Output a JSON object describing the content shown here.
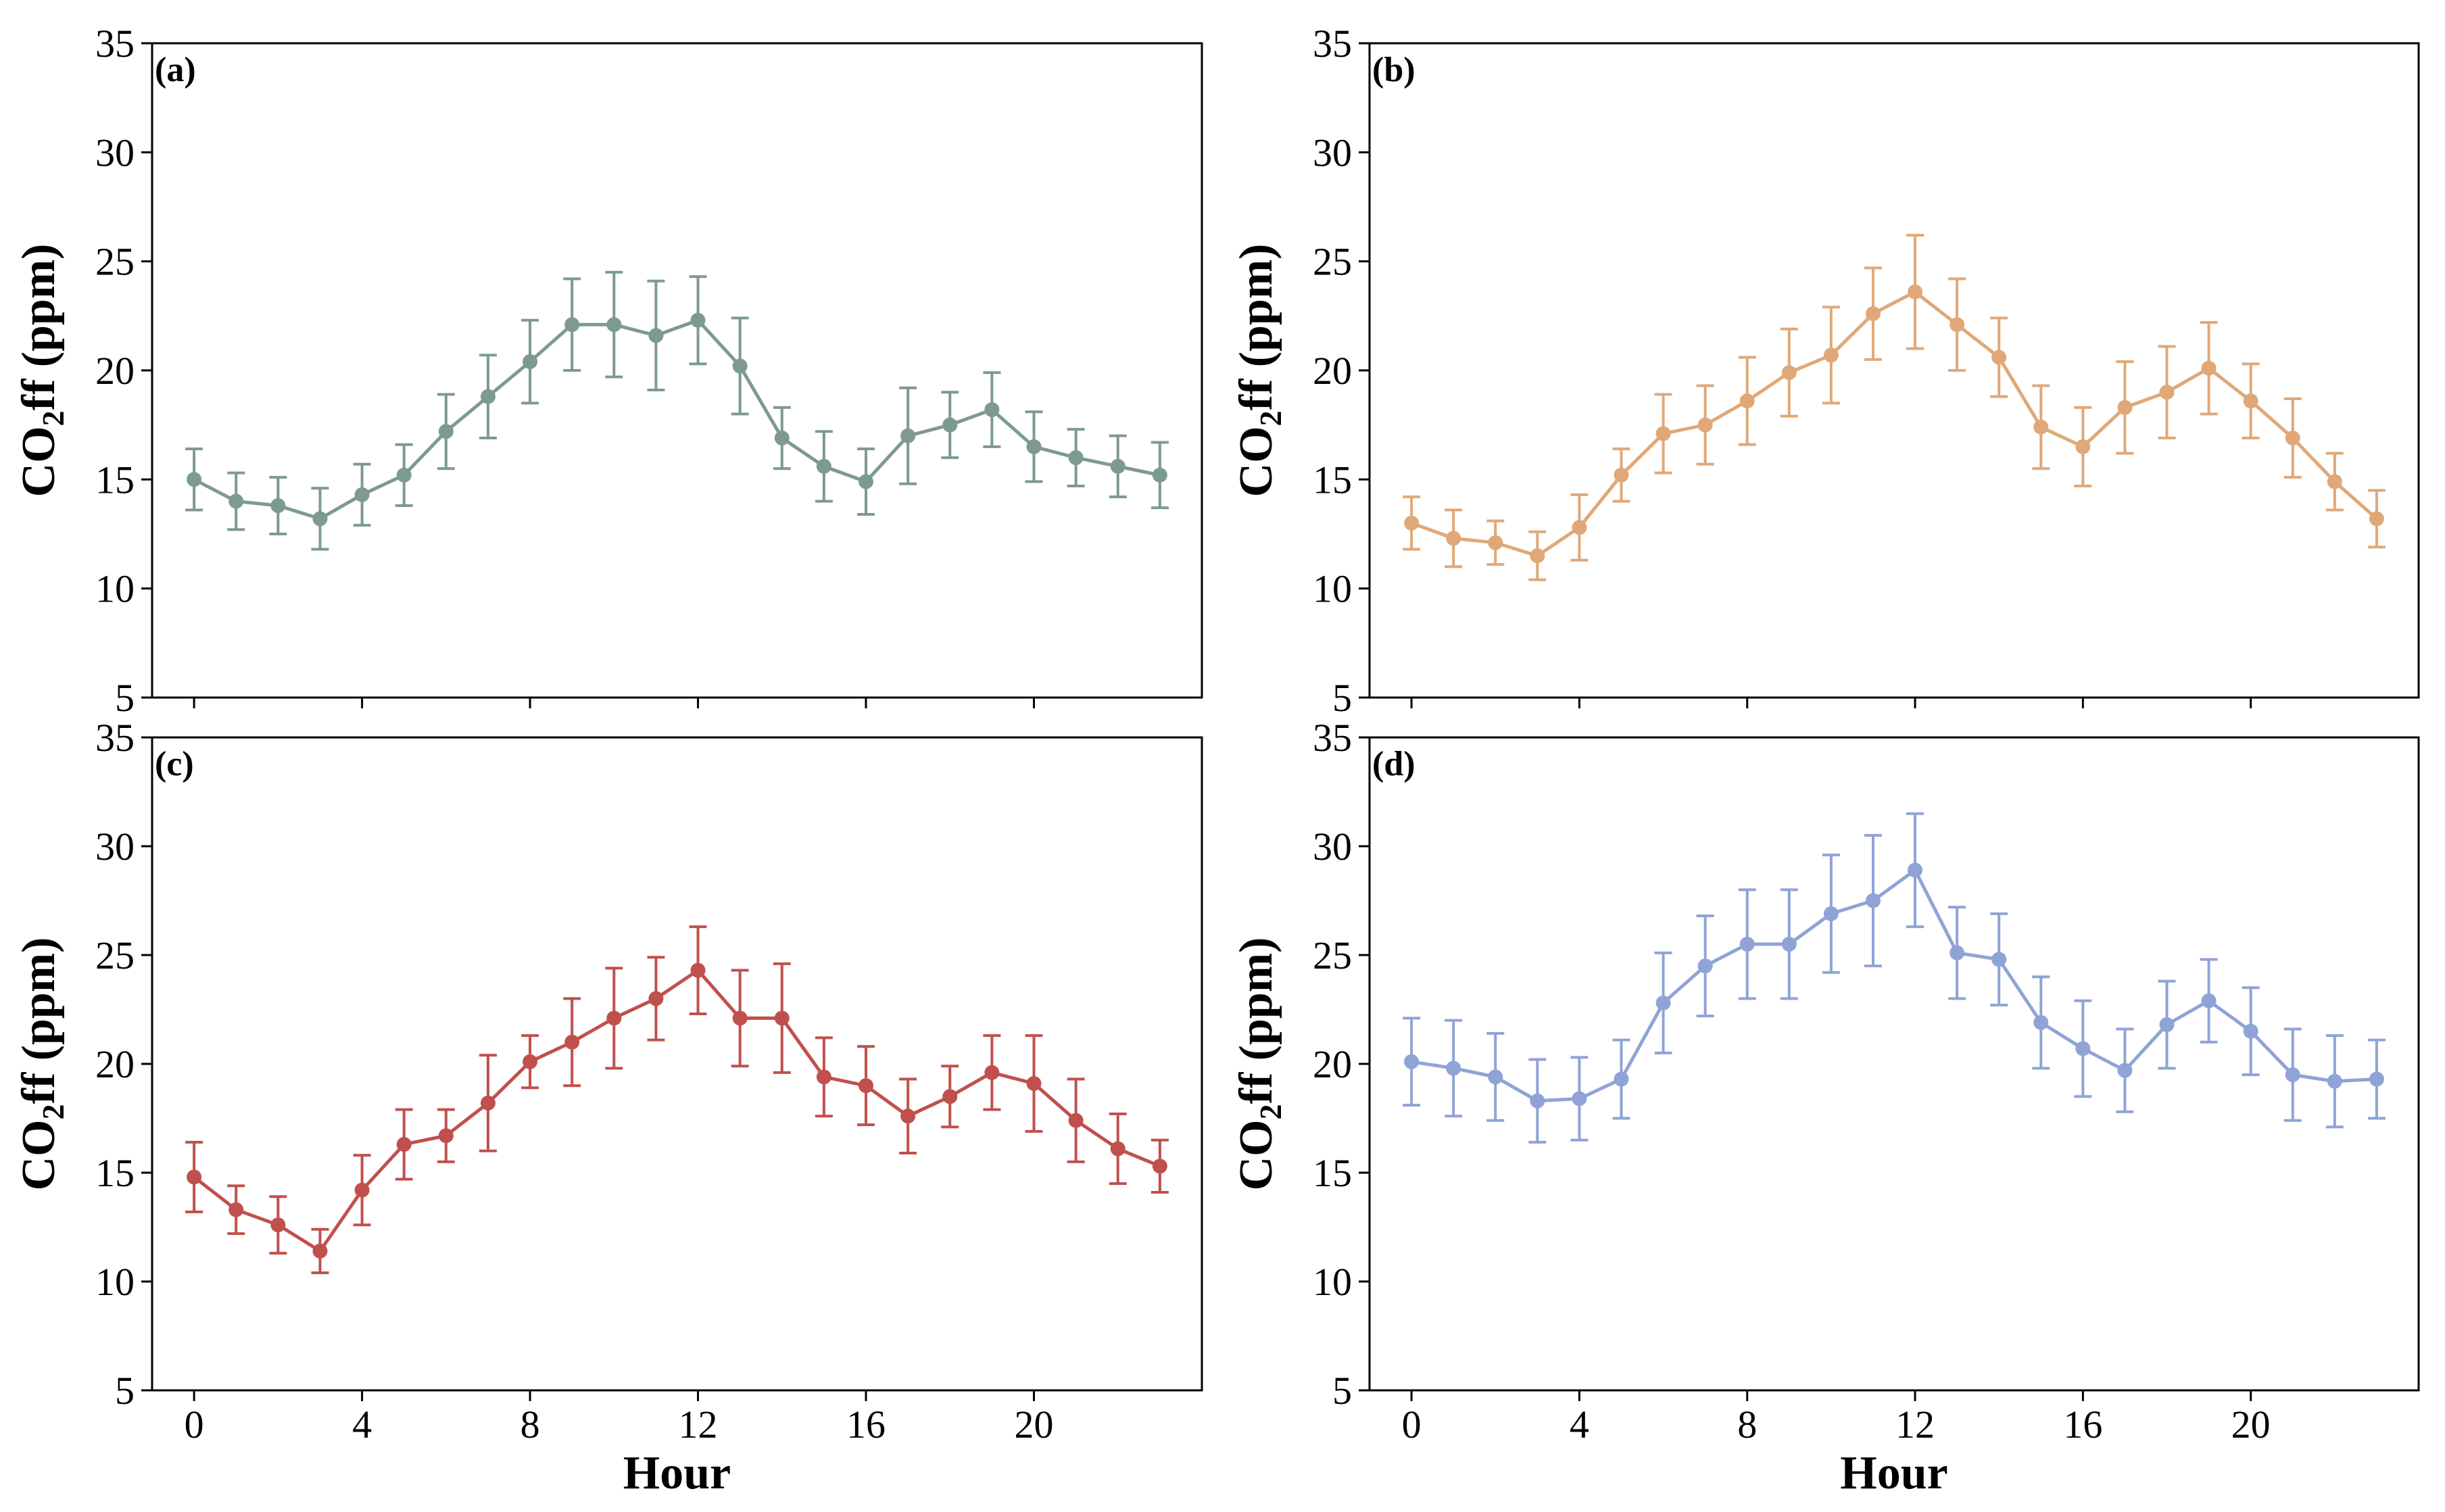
{
  "chart_data": [
    {
      "type": "line",
      "panel_label": "(a)",
      "color": "#7d9a90",
      "x": [
        0,
        1,
        2,
        3,
        4,
        5,
        6,
        7,
        8,
        9,
        10,
        11,
        12,
        13,
        14,
        15,
        16,
        17,
        18,
        19,
        20,
        21,
        22,
        23
      ],
      "values": [
        15.0,
        14.0,
        13.8,
        13.2,
        14.3,
        15.2,
        17.2,
        18.8,
        20.4,
        22.1,
        22.1,
        21.6,
        22.3,
        20.2,
        16.9,
        15.6,
        14.9,
        17.0,
        17.5,
        18.2,
        16.5,
        16.0,
        15.6,
        15.2
      ],
      "error": [
        1.4,
        1.3,
        1.3,
        1.4,
        1.4,
        1.4,
        1.7,
        1.9,
        1.9,
        2.1,
        2.4,
        2.5,
        2.0,
        2.2,
        1.4,
        1.6,
        1.5,
        2.2,
        1.5,
        1.7,
        1.6,
        1.3,
        1.4,
        1.5
      ],
      "xlabel": "",
      "ylabel": "CO2ff (ppm)",
      "ylim": [
        5,
        35
      ],
      "xticks": [
        0,
        4,
        8,
        12,
        16,
        20
      ],
      "yticks": [
        5,
        10,
        15,
        20,
        25,
        30,
        35
      ]
    },
    {
      "type": "line",
      "panel_label": "(b)",
      "color": "#e0a878",
      "x": [
        0,
        1,
        2,
        3,
        4,
        5,
        6,
        7,
        8,
        9,
        10,
        11,
        12,
        13,
        14,
        15,
        16,
        17,
        18,
        19,
        20,
        21,
        22,
        23
      ],
      "values": [
        13.0,
        12.3,
        12.1,
        11.5,
        12.8,
        15.2,
        17.1,
        17.5,
        18.6,
        19.9,
        20.7,
        22.6,
        23.6,
        22.1,
        20.6,
        17.4,
        16.5,
        18.3,
        19.0,
        20.1,
        18.6,
        16.9,
        14.9,
        13.2
      ],
      "error": [
        1.2,
        1.3,
        1.0,
        1.1,
        1.5,
        1.2,
        1.8,
        1.8,
        2.0,
        2.0,
        2.2,
        2.1,
        2.6,
        2.1,
        1.8,
        1.9,
        1.8,
        2.1,
        2.1,
        2.1,
        1.7,
        1.8,
        1.3,
        1.3
      ],
      "xlabel": "",
      "ylabel": "CO2ff (ppm)",
      "ylim": [
        5,
        35
      ],
      "xticks": [
        0,
        4,
        8,
        12,
        16,
        20
      ],
      "yticks": [
        5,
        10,
        15,
        20,
        25,
        30,
        35
      ]
    },
    {
      "type": "line",
      "panel_label": "(c)",
      "color": "#c0504d",
      "x": [
        0,
        1,
        2,
        3,
        4,
        5,
        6,
        7,
        8,
        9,
        10,
        11,
        12,
        13,
        14,
        15,
        16,
        17,
        18,
        19,
        20,
        21,
        22,
        23
      ],
      "values": [
        14.8,
        13.3,
        12.6,
        11.4,
        14.2,
        16.3,
        16.7,
        18.2,
        20.1,
        21.0,
        22.1,
        23.0,
        24.3,
        22.1,
        22.1,
        19.4,
        19.0,
        17.6,
        18.5,
        19.6,
        19.1,
        17.4,
        16.1,
        15.3
      ],
      "error": [
        1.6,
        1.1,
        1.3,
        1.0,
        1.6,
        1.6,
        1.2,
        2.2,
        1.2,
        2.0,
        2.3,
        1.9,
        2.0,
        2.2,
        2.5,
        1.8,
        1.8,
        1.7,
        1.4,
        1.7,
        2.2,
        1.9,
        1.6,
        1.2
      ],
      "xlabel": "Hour",
      "ylabel": "CO2ff (ppm)",
      "ylim": [
        5,
        35
      ],
      "xticks": [
        0,
        4,
        8,
        12,
        16,
        20
      ],
      "yticks": [
        5,
        10,
        15,
        20,
        25,
        30,
        35
      ]
    },
    {
      "type": "line",
      "panel_label": "(d)",
      "color": "#8fa3d6",
      "x": [
        0,
        1,
        2,
        3,
        4,
        5,
        6,
        7,
        8,
        9,
        10,
        11,
        12,
        13,
        14,
        15,
        16,
        17,
        18,
        19,
        20,
        21,
        22,
        23
      ],
      "values": [
        20.1,
        19.8,
        19.4,
        18.3,
        18.4,
        19.3,
        22.8,
        24.5,
        25.5,
        25.5,
        26.9,
        27.5,
        28.9,
        25.1,
        24.8,
        21.9,
        20.7,
        19.7,
        21.8,
        22.9,
        21.5,
        19.5,
        19.2,
        19.3
      ],
      "error": [
        2.0,
        2.2,
        2.0,
        1.9,
        1.9,
        1.8,
        2.3,
        2.3,
        2.5,
        2.5,
        2.7,
        3.0,
        2.6,
        2.1,
        2.1,
        2.1,
        2.2,
        1.9,
        2.0,
        1.9,
        2.0,
        2.1,
        2.1,
        1.8
      ],
      "xlabel": "Hour",
      "ylabel": "CO2ff (ppm)",
      "ylim": [
        5,
        35
      ],
      "xticks": [
        0,
        4,
        8,
        12,
        16,
        20
      ],
      "yticks": [
        5,
        10,
        15,
        20,
        25,
        30,
        35
      ]
    }
  ]
}
